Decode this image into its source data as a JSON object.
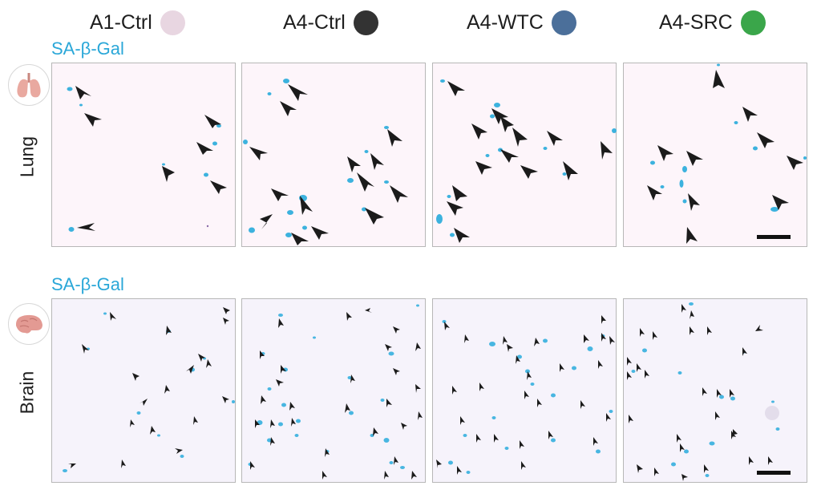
{
  "groups": [
    {
      "label": "A1-Ctrl",
      "color": "#e8d6e1"
    },
    {
      "label": "A4-Ctrl",
      "color": "#333333"
    },
    {
      "label": "A4-WTC",
      "color": "#4b6f9a"
    },
    {
      "label": "A4-SRC",
      "color": "#3aa64a"
    }
  ],
  "rows": [
    {
      "organ": "Lung",
      "stain": "SA-β-Gal",
      "icon": "lung-icon"
    },
    {
      "organ": "Brain",
      "stain": "SA-β-Gal",
      "icon": "brain-icon"
    }
  ],
  "colors": {
    "stain": "#2aa7d8",
    "arrowhead": "#1b1b1b",
    "lung_background": "#fdf5fa",
    "brain_background": "#f6f3fb"
  }
}
